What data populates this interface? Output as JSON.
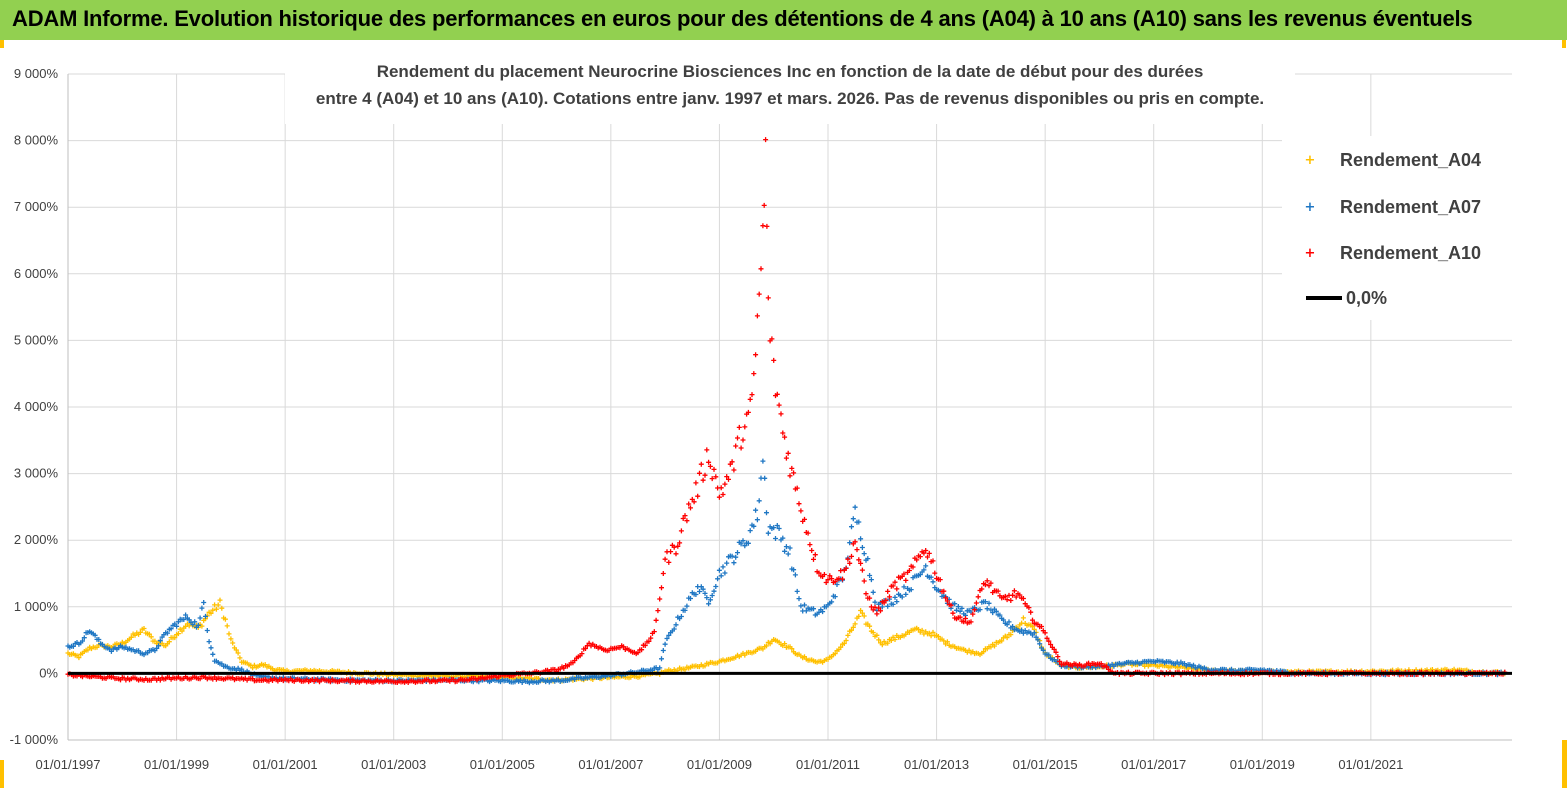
{
  "header": {
    "title": "ADAM Informe. Evolution historique des performances en euros pour des détentions de 4 ans (A04) à 10 ans (A10) sans les revenus éventuels"
  },
  "colors": {
    "banner": "#92d050",
    "accent": "#ffc000",
    "A04": "#ffc000",
    "A07": "#1f77c4",
    "A10": "#ff0000",
    "zero": "#000000",
    "grid": "#d9d9d9"
  },
  "chart_data": {
    "type": "scatter",
    "title_lines": [
      "Rendement du placement Neurocrine Biosciences Inc en fonction de la date de début pour des durées",
      "entre 4 (A04) et 10 ans (A10). Cotations entre janv. 1997 et mars. 2026. Pas de revenus disponibles ou pris en compte."
    ],
    "ylim": [
      -1000,
      9000
    ],
    "yticks": [
      -1000,
      0,
      1000,
      2000,
      3000,
      4000,
      5000,
      6000,
      7000,
      8000,
      9000
    ],
    "ytick_labels": [
      "-1 000%",
      "0%",
      "1 000%",
      "2 000%",
      "3 000%",
      "4 000%",
      "5 000%",
      "6 000%",
      "7 000%",
      "8 000%",
      "9 000%"
    ],
    "xlim": [
      1997.0,
      2023.6
    ],
    "xticks": [
      1997,
      1999,
      2001,
      2003,
      2005,
      2007,
      2009,
      2011,
      2013,
      2015,
      2017,
      2019,
      2021
    ],
    "xtick_labels": [
      "01/01/1997",
      "01/01/1999",
      "01/01/2001",
      "01/01/2003",
      "01/01/2005",
      "01/01/2007",
      "01/01/2009",
      "01/01/2011",
      "01/01/2013",
      "01/01/2015",
      "01/01/2017",
      "01/01/2019",
      "01/01/2021"
    ],
    "grid": true,
    "legend_position": "top-right",
    "series": [
      {
        "name": "Rendement_A04",
        "color": "#ffc000",
        "points": [
          [
            1997.0,
            300
          ],
          [
            1997.2,
            250
          ],
          [
            1997.4,
            380
          ],
          [
            1997.6,
            420
          ],
          [
            1997.8,
            400
          ],
          [
            1998.0,
            450
          ],
          [
            1998.2,
            560
          ],
          [
            1998.4,
            650
          ],
          [
            1998.6,
            480
          ],
          [
            1998.8,
            420
          ],
          [
            1999.0,
            600
          ],
          [
            1999.2,
            750
          ],
          [
            1999.4,
            680
          ],
          [
            1999.6,
            900
          ],
          [
            1999.8,
            1050
          ],
          [
            1999.9,
            800
          ],
          [
            2000.0,
            500
          ],
          [
            2000.2,
            180
          ],
          [
            2000.4,
            100
          ],
          [
            2000.6,
            130
          ],
          [
            2000.8,
            60
          ],
          [
            2001.0,
            30
          ],
          [
            2001.5,
            40
          ],
          [
            2002.0,
            20
          ],
          [
            2002.5,
            0
          ],
          [
            2003.0,
            -20
          ],
          [
            2004.0,
            -40
          ],
          [
            2005.0,
            -60
          ],
          [
            2005.5,
            -80
          ],
          [
            2006.0,
            -100
          ],
          [
            2006.5,
            -80
          ],
          [
            2007.0,
            -60
          ],
          [
            2007.5,
            -40
          ],
          [
            2007.9,
            0
          ],
          [
            2008.0,
            30
          ],
          [
            2008.5,
            90
          ],
          [
            2009.0,
            180
          ],
          [
            2009.5,
            300
          ],
          [
            2009.8,
            380
          ],
          [
            2010.0,
            520
          ],
          [
            2010.3,
            380
          ],
          [
            2010.5,
            250
          ],
          [
            2010.8,
            170
          ],
          [
            2011.0,
            200
          ],
          [
            2011.3,
            450
          ],
          [
            2011.6,
            900
          ],
          [
            2011.8,
            650
          ],
          [
            2012.0,
            450
          ],
          [
            2012.3,
            550
          ],
          [
            2012.6,
            650
          ],
          [
            2012.9,
            600
          ],
          [
            2013.2,
            450
          ],
          [
            2013.5,
            350
          ],
          [
            2013.8,
            300
          ],
          [
            2014.0,
            400
          ],
          [
            2014.3,
            550
          ],
          [
            2014.6,
            800
          ],
          [
            2014.8,
            650
          ],
          [
            2015.0,
            300
          ],
          [
            2015.3,
            120
          ],
          [
            2015.6,
            90
          ],
          [
            2016.0,
            100
          ],
          [
            2016.5,
            140
          ],
          [
            2017.0,
            120
          ],
          [
            2017.5,
            90
          ],
          [
            2018.0,
            50
          ],
          [
            2018.5,
            30
          ],
          [
            2019.0,
            20
          ],
          [
            2020.0,
            20
          ],
          [
            2021.0,
            30
          ],
          [
            2022.0,
            40
          ],
          [
            2022.5,
            50
          ],
          [
            2023.0,
            20
          ],
          [
            2023.5,
            10
          ]
        ]
      },
      {
        "name": "Rendement_A07",
        "color": "#1f77c4",
        "points": [
          [
            1997.0,
            400
          ],
          [
            1997.2,
            450
          ],
          [
            1997.4,
            650
          ],
          [
            1997.6,
            450
          ],
          [
            1997.8,
            350
          ],
          [
            1998.0,
            400
          ],
          [
            1998.2,
            350
          ],
          [
            1998.4,
            300
          ],
          [
            1998.6,
            350
          ],
          [
            1998.8,
            600
          ],
          [
            1999.0,
            750
          ],
          [
            1999.2,
            850
          ],
          [
            1999.4,
            700
          ],
          [
            1999.5,
            1050
          ],
          [
            1999.6,
            500
          ],
          [
            1999.7,
            200
          ],
          [
            1999.9,
            100
          ],
          [
            2000.2,
            50
          ],
          [
            2000.5,
            -50
          ],
          [
            2001.0,
            -80
          ],
          [
            2002.0,
            -100
          ],
          [
            2003.0,
            -110
          ],
          [
            2004.0,
            -100
          ],
          [
            2005.0,
            -110
          ],
          [
            2005.5,
            -120
          ],
          [
            2006.0,
            -110
          ],
          [
            2006.5,
            -70
          ],
          [
            2007.0,
            -30
          ],
          [
            2007.5,
            20
          ],
          [
            2007.9,
            80
          ],
          [
            2008.0,
            450
          ],
          [
            2008.3,
            900
          ],
          [
            2008.6,
            1300
          ],
          [
            2008.8,
            1100
          ],
          [
            2009.0,
            1500
          ],
          [
            2009.3,
            1800
          ],
          [
            2009.5,
            2000
          ],
          [
            2009.7,
            2400
          ],
          [
            2009.8,
            3200
          ],
          [
            2009.9,
            2200
          ],
          [
            2010.1,
            2100
          ],
          [
            2010.3,
            1800
          ],
          [
            2010.5,
            1000
          ],
          [
            2010.8,
            900
          ],
          [
            2011.0,
            1000
          ],
          [
            2011.3,
            1500
          ],
          [
            2011.5,
            2400
          ],
          [
            2011.7,
            1800
          ],
          [
            2011.9,
            1000
          ],
          [
            2012.2,
            1100
          ],
          [
            2012.5,
            1300
          ],
          [
            2012.8,
            1600
          ],
          [
            2013.0,
            1300
          ],
          [
            2013.3,
            1000
          ],
          [
            2013.6,
            900
          ],
          [
            2013.9,
            1050
          ],
          [
            2014.2,
            800
          ],
          [
            2014.5,
            650
          ],
          [
            2014.8,
            600
          ],
          [
            2015.0,
            300
          ],
          [
            2015.3,
            120
          ],
          [
            2015.6,
            100
          ],
          [
            2016.0,
            100
          ],
          [
            2016.5,
            150
          ],
          [
            2017.0,
            180
          ],
          [
            2017.5,
            150
          ],
          [
            2018.0,
            60
          ],
          [
            2018.5,
            40
          ],
          [
            2019.0,
            50
          ],
          [
            2019.5,
            10
          ],
          [
            2020.0,
            0
          ],
          [
            2021.0,
            0
          ],
          [
            2022.0,
            0
          ],
          [
            2023.0,
            0
          ],
          [
            2023.5,
            0
          ]
        ]
      },
      {
        "name": "Rendement_A10",
        "color": "#ff0000",
        "points": [
          [
            1997.0,
            -20
          ],
          [
            1997.5,
            -50
          ],
          [
            1998.0,
            -80
          ],
          [
            1998.5,
            -90
          ],
          [
            1999.0,
            -70
          ],
          [
            1999.5,
            -60
          ],
          [
            2000.0,
            -80
          ],
          [
            2000.5,
            -100
          ],
          [
            2001.0,
            -100
          ],
          [
            2002.0,
            -110
          ],
          [
            2003.0,
            -120
          ],
          [
            2004.0,
            -110
          ],
          [
            2004.5,
            -90
          ],
          [
            2005.0,
            -30
          ],
          [
            2005.5,
            0
          ],
          [
            2006.0,
            50
          ],
          [
            2006.3,
            150
          ],
          [
            2006.6,
            450
          ],
          [
            2006.9,
            350
          ],
          [
            2007.2,
            400
          ],
          [
            2007.5,
            300
          ],
          [
            2007.8,
            600
          ],
          [
            2008.0,
            1700
          ],
          [
            2008.2,
            1900
          ],
          [
            2008.4,
            2400
          ],
          [
            2008.6,
            2800
          ],
          [
            2008.8,
            3300
          ],
          [
            2009.0,
            2700
          ],
          [
            2009.2,
            3000
          ],
          [
            2009.4,
            3600
          ],
          [
            2009.6,
            4000
          ],
          [
            2009.8,
            6500
          ],
          [
            2009.85,
            7800
          ],
          [
            2009.9,
            5500
          ],
          [
            2010.0,
            4500
          ],
          [
            2010.2,
            3500
          ],
          [
            2010.4,
            2800
          ],
          [
            2010.6,
            2200
          ],
          [
            2010.8,
            1600
          ],
          [
            2011.0,
            1400
          ],
          [
            2011.3,
            1500
          ],
          [
            2011.5,
            2000
          ],
          [
            2011.7,
            1200
          ],
          [
            2011.9,
            900
          ],
          [
            2012.2,
            1300
          ],
          [
            2012.5,
            1500
          ],
          [
            2012.8,
            1900
          ],
          [
            2013.0,
            1500
          ],
          [
            2013.3,
            900
          ],
          [
            2013.6,
            750
          ],
          [
            2013.9,
            1400
          ],
          [
            2014.2,
            1100
          ],
          [
            2014.5,
            1200
          ],
          [
            2014.8,
            800
          ],
          [
            2015.0,
            600
          ],
          [
            2015.3,
            150
          ],
          [
            2015.6,
            120
          ],
          [
            2016.0,
            150
          ],
          [
            2016.3,
            0
          ],
          [
            2017.0,
            0
          ],
          [
            2018.0,
            0
          ],
          [
            2019.0,
            0
          ],
          [
            2020.0,
            0
          ],
          [
            2021.0,
            0
          ],
          [
            2022.0,
            0
          ],
          [
            2023.0,
            0
          ],
          [
            2023.5,
            0
          ]
        ]
      }
    ],
    "reference_line": {
      "name": "0,0%",
      "y": 0
    }
  }
}
